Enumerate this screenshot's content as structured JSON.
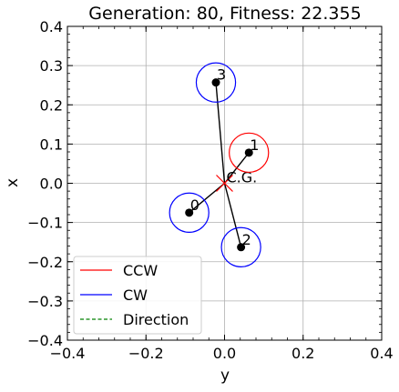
{
  "chart_data": {
    "type": "scatter",
    "title": "Generation: 80, Fitness: 22.355",
    "xlabel": "y",
    "ylabel": "x",
    "xlim": [
      -0.4,
      0.4
    ],
    "ylim": [
      -0.4,
      0.4
    ],
    "xticks": [
      -0.4,
      -0.2,
      0.0,
      0.2,
      0.4
    ],
    "yticks": [
      -0.4,
      -0.3,
      -0.2,
      -0.1,
      0.0,
      0.1,
      0.2,
      0.3,
      0.4
    ],
    "xtick_labels": [
      "−0.4",
      "−0.2",
      "0.0",
      "0.2",
      "0.4"
    ],
    "ytick_labels": [
      "−0.4",
      "−0.3",
      "−0.2",
      "−0.1",
      "0.0",
      "0.1",
      "0.2",
      "0.3",
      "0.4"
    ],
    "grid": true,
    "legend_position": "lower-left",
    "legend": [
      {
        "label": "CCW",
        "color": "#ff0000",
        "style": "solid"
      },
      {
        "label": "CW",
        "color": "#0000ff",
        "style": "solid"
      },
      {
        "label": "Direction",
        "color": "#008000",
        "style": "dashed"
      }
    ],
    "center_of_gravity": {
      "label": "C.G.",
      "y": 0.0,
      "x": 0.0,
      "color": "#ff0000"
    },
    "rotor_radius": 0.05,
    "rotors": [
      {
        "label": "0",
        "y": -0.09,
        "x": -0.075,
        "direction": "CW"
      },
      {
        "label": "1",
        "y": 0.062,
        "x": 0.078,
        "direction": "CCW"
      },
      {
        "label": "2",
        "y": 0.042,
        "x": -0.163,
        "direction": "CW"
      },
      {
        "label": "3",
        "y": -0.022,
        "x": 0.257,
        "direction": "CW"
      }
    ]
  }
}
